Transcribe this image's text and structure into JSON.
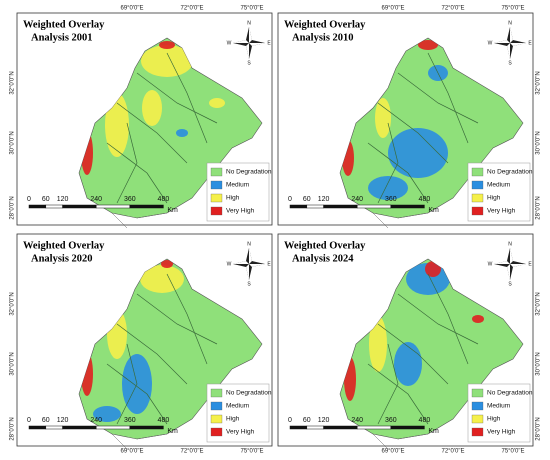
{
  "panels": [
    {
      "title": [
        "Weighted Overlay",
        "Analysis 2001"
      ],
      "lon_labels": [
        "69°0'0\"E",
        "72°0'0\"E",
        "75°0'0\"E"
      ],
      "lat_labels": [
        "32°0'0\"N",
        "30°0'0\"N",
        "28°0'0\"N"
      ],
      "legend": [
        "No Degradation",
        "Medium",
        "High",
        "Very High"
      ],
      "scale": [
        "0",
        "60",
        "120",
        "240",
        "360",
        "480"
      ],
      "scale_unit": "Km",
      "compass": [
        "N",
        "S",
        "E",
        "W"
      ]
    },
    {
      "title": [
        "Weighted Overlay",
        "Analysis 2010"
      ],
      "lon_labels": [
        "69°0'0\"E",
        "72°0'0\"E",
        "75°0'0\"E"
      ],
      "lat_labels": [
        "32°0'0\"N",
        "30°0'0\"N",
        "28°0'0\"N"
      ],
      "legend": [
        "No Degradation",
        "Medium",
        "High",
        "Very High"
      ],
      "scale": [
        "0",
        "60",
        "120",
        "240",
        "360",
        "480"
      ],
      "scale_unit": "Km",
      "compass": [
        "N",
        "S",
        "E",
        "W"
      ]
    },
    {
      "title": [
        "Weighted Overlay",
        "Analysis 2020"
      ],
      "lon_labels": [
        "69°0'0\"E",
        "72°0'0\"E",
        "75°0'0\"E"
      ],
      "lat_labels": [
        "32°0'0\"N",
        "30°0'0\"N",
        "28°0'0\"N"
      ],
      "legend": [
        "No Degradation",
        "Medium",
        "High",
        "Very High"
      ],
      "scale": [
        "0",
        "60",
        "120",
        "240",
        "360",
        "480"
      ],
      "scale_unit": "Km",
      "compass": [
        "N",
        "S",
        "E",
        "W"
      ]
    },
    {
      "title": [
        "Weighted Overlay",
        "Analysis 2024"
      ],
      "lon_labels": [
        "69°0'0\"E",
        "72°0'0\"E",
        "75°0'0\"E"
      ],
      "lat_labels": [
        "32°0'0\"N",
        "30°0'0\"N",
        "28°0'0\"N"
      ],
      "legend": [
        "No Degradation",
        "Medium",
        "High",
        "Very High"
      ],
      "scale": [
        "0",
        "60",
        "120",
        "240",
        "360",
        "480"
      ],
      "scale_unit": "Km",
      "compass": [
        "N",
        "S",
        "E",
        "W"
      ]
    }
  ]
}
